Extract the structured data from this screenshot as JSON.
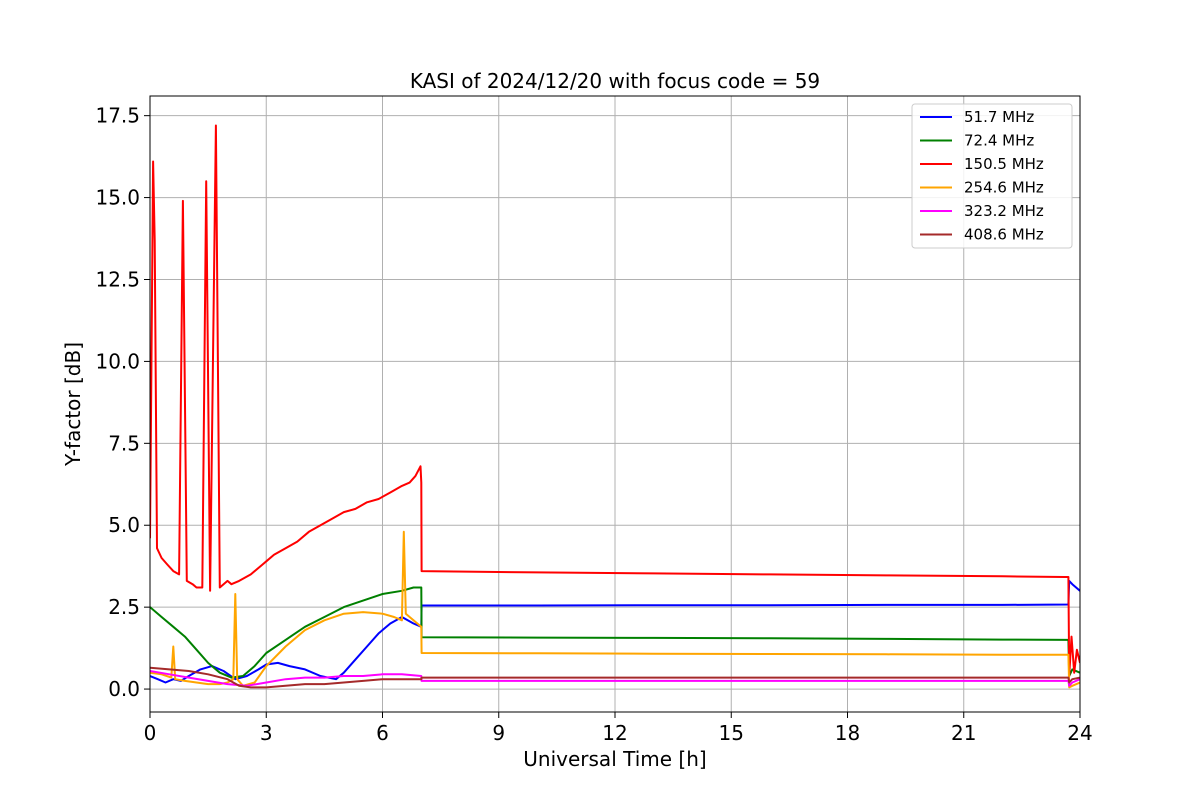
{
  "chart_data": {
    "type": "line",
    "title": "KASI of 2024/12/20 with focus code = 59",
    "xlabel": "Universal Time [h]",
    "ylabel": "Y-factor [dB]",
    "xlim": [
      0,
      24
    ],
    "ylim": [
      -0.7,
      18.1
    ],
    "xticks": [
      0,
      3,
      6,
      9,
      12,
      15,
      18,
      21,
      24
    ],
    "xtick_labels": [
      "0",
      "3",
      "6",
      "9",
      "12",
      "15",
      "18",
      "21",
      "24"
    ],
    "yticks": [
      0.0,
      2.5,
      5.0,
      7.5,
      10.0,
      12.5,
      15.0,
      17.5
    ],
    "ytick_labels": [
      "0.0",
      "2.5",
      "5.0",
      "7.5",
      "10.0",
      "12.5",
      "15.0",
      "17.5"
    ],
    "grid": true,
    "legend_position": "top-right",
    "series": [
      {
        "name": " 51.7 MHz",
        "color": "#0000ff",
        "x": [
          0,
          0.2,
          0.4,
          0.6,
          0.8,
          1.0,
          1.3,
          1.6,
          1.9,
          2.2,
          2.5,
          2.8,
          3.0,
          3.3,
          3.6,
          4.0,
          4.4,
          4.8,
          5.0,
          5.3,
          5.6,
          5.9,
          6.2,
          6.5,
          6.8,
          7.0,
          7.01,
          10.0,
          13.0,
          16.0,
          19.0,
          22.0,
          23.7,
          23.72,
          23.8,
          23.9,
          24.0
        ],
        "y": [
          0.4,
          0.3,
          0.2,
          0.3,
          0.25,
          0.4,
          0.6,
          0.7,
          0.55,
          0.3,
          0.4,
          0.6,
          0.75,
          0.8,
          0.7,
          0.6,
          0.4,
          0.3,
          0.5,
          0.9,
          1.3,
          1.7,
          2.0,
          2.2,
          2.0,
          1.9,
          2.55,
          2.55,
          2.56,
          2.56,
          2.57,
          2.57,
          2.58,
          3.3,
          3.2,
          3.1,
          3.0
        ]
      },
      {
        "name": " 72.4 MHz",
        "color": "#008000",
        "x": [
          0,
          0.3,
          0.6,
          0.9,
          1.2,
          1.5,
          1.8,
          2.1,
          2.4,
          2.7,
          3.0,
          3.5,
          4.0,
          4.5,
          5.0,
          5.5,
          6.0,
          6.5,
          6.8,
          7.0,
          7.01,
          10.0,
          13.0,
          16.0,
          19.0,
          22.0,
          23.7,
          23.72,
          23.8,
          24.0
        ],
        "y": [
          2.5,
          2.2,
          1.9,
          1.6,
          1.2,
          0.8,
          0.5,
          0.35,
          0.4,
          0.7,
          1.1,
          1.5,
          1.9,
          2.2,
          2.5,
          2.7,
          2.9,
          3.0,
          3.1,
          3.1,
          1.58,
          1.57,
          1.56,
          1.55,
          1.53,
          1.51,
          1.5,
          0.4,
          0.6,
          0.5
        ]
      },
      {
        "name": " 150.5 MHz",
        "color": "#ff0000",
        "x": [
          0,
          0.08,
          0.12,
          0.18,
          0.3,
          0.45,
          0.6,
          0.75,
          0.85,
          0.95,
          1.1,
          1.2,
          1.35,
          1.45,
          1.55,
          1.7,
          1.8,
          2.0,
          2.1,
          2.3,
          2.6,
          2.9,
          3.0,
          3.2,
          3.5,
          3.8,
          4.1,
          4.4,
          4.7,
          5.0,
          5.3,
          5.6,
          5.9,
          6.2,
          6.5,
          6.7,
          6.85,
          6.98,
          7.0,
          7.01,
          10.0,
          13.0,
          16.0,
          19.0,
          22.0,
          23.6,
          23.7,
          23.72,
          23.78,
          23.85,
          23.92,
          24.0
        ],
        "y": [
          4.6,
          16.1,
          13.7,
          4.3,
          4.0,
          3.8,
          3.6,
          3.5,
          14.9,
          3.3,
          3.2,
          3.1,
          3.1,
          15.5,
          3.0,
          17.2,
          3.1,
          3.3,
          3.2,
          3.3,
          3.5,
          3.8,
          3.9,
          4.1,
          4.3,
          4.5,
          4.8,
          5.0,
          5.2,
          5.4,
          5.5,
          5.7,
          5.8,
          6.0,
          6.2,
          6.3,
          6.5,
          6.8,
          6.3,
          3.6,
          3.56,
          3.53,
          3.5,
          3.47,
          3.44,
          3.42,
          3.42,
          0.4,
          1.6,
          0.5,
          1.2,
          0.8
        ]
      },
      {
        "name": " 254.6 MHz",
        "color": "#ffa500",
        "x": [
          0,
          0.3,
          0.55,
          0.6,
          0.65,
          0.9,
          1.2,
          1.5,
          1.8,
          2.0,
          2.15,
          2.2,
          2.25,
          2.4,
          2.7,
          3.0,
          3.5,
          4.0,
          4.5,
          5.0,
          5.5,
          6.0,
          6.3,
          6.5,
          6.55,
          6.6,
          6.8,
          7.0,
          7.01,
          10.0,
          13.0,
          16.0,
          19.0,
          22.0,
          23.7,
          23.72,
          23.8,
          24.0
        ],
        "y": [
          0.5,
          0.45,
          0.35,
          1.3,
          0.3,
          0.25,
          0.2,
          0.15,
          0.15,
          0.2,
          0.3,
          2.9,
          0.3,
          0.1,
          0.2,
          0.7,
          1.3,
          1.8,
          2.1,
          2.3,
          2.35,
          2.3,
          2.2,
          2.1,
          4.8,
          2.3,
          2.1,
          1.9,
          1.1,
          1.09,
          1.08,
          1.07,
          1.06,
          1.05,
          1.05,
          0.05,
          0.1,
          0.2
        ]
      },
      {
        "name": " 323.2 MHz",
        "color": "#ff00ff",
        "x": [
          0,
          0.5,
          1.0,
          1.5,
          2.0,
          2.5,
          3.0,
          3.5,
          4.0,
          4.5,
          5.0,
          5.5,
          6.0,
          6.5,
          7.0,
          7.01,
          10.0,
          13.0,
          16.0,
          19.0,
          22.0,
          23.7,
          23.72,
          23.8,
          24.0
        ],
        "y": [
          0.55,
          0.45,
          0.35,
          0.25,
          0.15,
          0.1,
          0.2,
          0.3,
          0.35,
          0.35,
          0.4,
          0.4,
          0.45,
          0.45,
          0.4,
          0.25,
          0.25,
          0.25,
          0.25,
          0.25,
          0.25,
          0.25,
          0.1,
          0.2,
          0.3
        ]
      },
      {
        "name": " 408.6 MHz",
        "color": "#a52a2a",
        "x": [
          0,
          0.5,
          1.0,
          1.5,
          2.0,
          2.3,
          2.6,
          3.0,
          3.5,
          4.0,
          4.5,
          5.0,
          5.5,
          6.0,
          6.5,
          7.0,
          7.01,
          10.0,
          13.0,
          16.0,
          19.0,
          22.0,
          23.7,
          23.72,
          23.8,
          24.0
        ],
        "y": [
          0.65,
          0.6,
          0.55,
          0.45,
          0.3,
          0.1,
          0.05,
          0.05,
          0.1,
          0.15,
          0.15,
          0.2,
          0.25,
          0.3,
          0.3,
          0.3,
          0.35,
          0.35,
          0.35,
          0.35,
          0.35,
          0.35,
          0.35,
          0.2,
          0.3,
          0.35
        ]
      }
    ]
  }
}
